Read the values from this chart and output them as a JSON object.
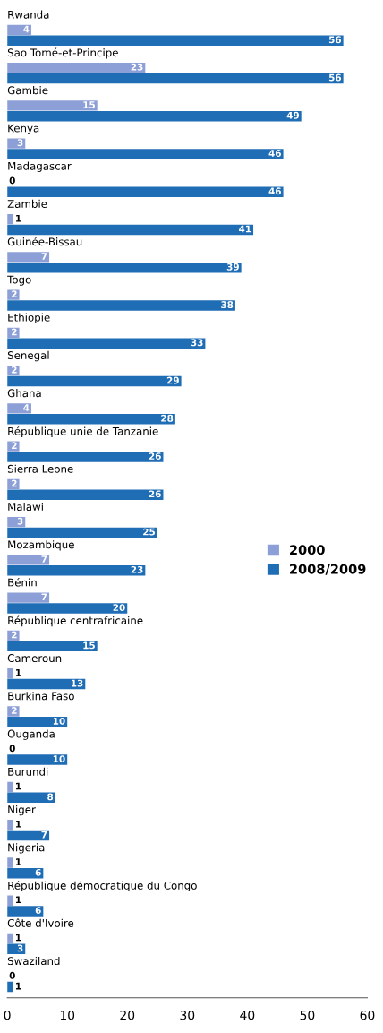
{
  "chart_data": {
    "type": "bar",
    "orientation": "horizontal",
    "categories": [
      "Rwanda",
      "Sao Tomé-et-Principe",
      "Gambie",
      "Kenya",
      "Madagascar",
      "Zambie",
      "Guinée-Bissau",
      "Togo",
      "Ethiopie",
      "Senegal",
      "Ghana",
      "République unie de Tanzanie",
      "Sierra Leone",
      "Malawi",
      "Mozambique",
      "Bénin",
      "République centrafricaine",
      "Cameroun",
      "Burkina Faso",
      "Ouganda",
      "Burundi",
      "Niger",
      "Nigeria",
      "République démocratique du Congo",
      "Côte d'Ivoire",
      "Swaziland"
    ],
    "series": [
      {
        "name": "2000",
        "color": "#8c9fd6",
        "values": [
          4,
          23,
          15,
          3,
          0,
          1,
          7,
          2,
          2,
          2,
          4,
          2,
          2,
          3,
          7,
          7,
          2,
          1,
          2,
          0,
          1,
          1,
          1,
          1,
          1,
          0
        ]
      },
      {
        "name": "2008/2009",
        "color": "#1f6db5",
        "values": [
          56,
          56,
          49,
          46,
          46,
          41,
          39,
          38,
          33,
          29,
          28,
          26,
          26,
          25,
          23,
          20,
          15,
          13,
          10,
          10,
          8,
          7,
          6,
          6,
          3,
          1
        ]
      }
    ],
    "xlim": [
      0,
      60
    ],
    "xticks": [
      0,
      10,
      20,
      30,
      40,
      50,
      60
    ],
    "data_labels": true,
    "legend": "right",
    "grid": false
  }
}
